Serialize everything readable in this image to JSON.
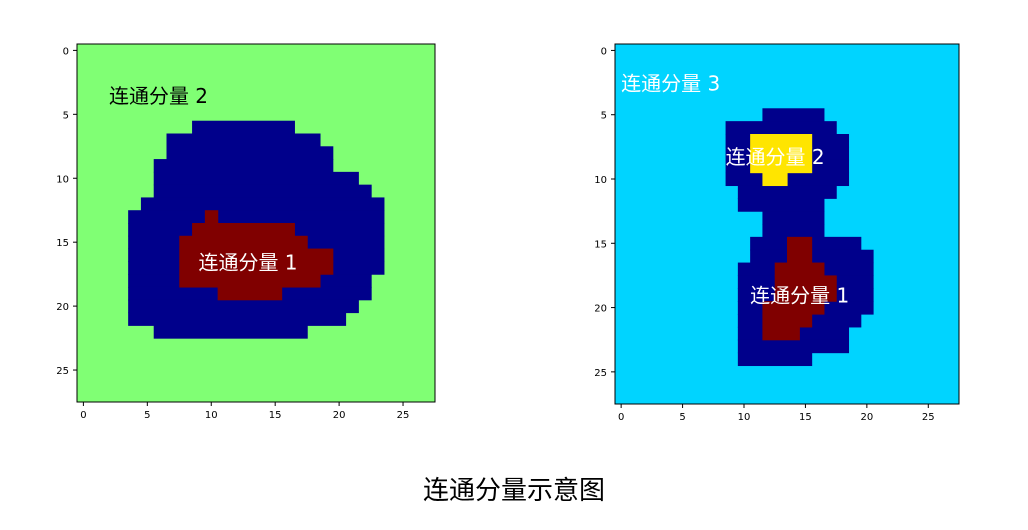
{
  "caption": "连通分量示意图",
  "colors": {
    "left_background": "#80ff74",
    "right_background": "#00d4ff",
    "navy": "#00008b",
    "dark_red": "#800000",
    "yellow": "#ffe500"
  },
  "chart_data": [
    {
      "type": "heatmap",
      "title": "",
      "xlabel": "",
      "ylabel": "",
      "xlim": [
        -0.5,
        27.5
      ],
      "ylim": [
        27.5,
        -0.5
      ],
      "x_ticks": [
        0,
        5,
        10,
        15,
        20,
        25
      ],
      "y_ticks": [
        0,
        5,
        10,
        15,
        20,
        25
      ],
      "background_color": "#80ff74",
      "regions": [
        {
          "name": "blue",
          "color": "#00008b",
          "rows": [
            {
              "y": 6,
              "x_start": 9,
              "x_end": 16
            },
            {
              "y": 7,
              "x_start": 7,
              "x_end": 18
            },
            {
              "y": 8,
              "x_start": 7,
              "x_end": 19
            },
            {
              "y": 9,
              "x_start": 6,
              "x_end": 19
            },
            {
              "y": 10,
              "x_start": 6,
              "x_end": 21
            },
            {
              "y": 11,
              "x_start": 6,
              "x_end": 22
            },
            {
              "y": 12,
              "x_start": 5,
              "x_end": 23
            },
            {
              "y": 13,
              "x_start": 4,
              "x_end": 23
            },
            {
              "y": 14,
              "x_start": 4,
              "x_end": 23
            },
            {
              "y": 15,
              "x_start": 4,
              "x_end": 23
            },
            {
              "y": 16,
              "x_start": 4,
              "x_end": 23
            },
            {
              "y": 17,
              "x_start": 4,
              "x_end": 23
            },
            {
              "y": 18,
              "x_start": 4,
              "x_end": 22
            },
            {
              "y": 19,
              "x_start": 4,
              "x_end": 22
            },
            {
              "y": 20,
              "x_start": 4,
              "x_end": 21
            },
            {
              "y": 21,
              "x_start": 4,
              "x_end": 20
            },
            {
              "y": 22,
              "x_start": 6,
              "x_end": 17
            }
          ]
        },
        {
          "name": "red",
          "color": "#800000",
          "rows": [
            {
              "y": 13,
              "x_start": 10,
              "x_end": 10
            },
            {
              "y": 14,
              "x_start": 9,
              "x_end": 16
            },
            {
              "y": 15,
              "x_start": 8,
              "x_end": 17
            },
            {
              "y": 16,
              "x_start": 8,
              "x_end": 19
            },
            {
              "y": 17,
              "x_start": 8,
              "x_end": 19
            },
            {
              "y": 18,
              "x_start": 8,
              "x_end": 18
            },
            {
              "y": 19,
              "x_start": 11,
              "x_end": 15
            }
          ]
        }
      ],
      "annotations": [
        {
          "text": "连通分量 2",
          "x": 2,
          "y": 3.5,
          "color": "#000000"
        },
        {
          "text": "连通分量 1",
          "x": 9,
          "y": 16.5,
          "color": "#ffffff"
        }
      ]
    },
    {
      "type": "heatmap",
      "title": "",
      "xlabel": "",
      "ylabel": "",
      "xlim": [
        -0.5,
        27.5
      ],
      "ylim": [
        27.5,
        -0.5
      ],
      "x_ticks": [
        0,
        5,
        10,
        15,
        20,
        25
      ],
      "y_ticks": [
        0,
        5,
        10,
        15,
        20,
        25
      ],
      "background_color": "#00d4ff",
      "regions": [
        {
          "name": "blue",
          "color": "#00008b",
          "rows": [
            {
              "y": 5,
              "x_start": 12,
              "x_end": 16
            },
            {
              "y": 6,
              "x_start": 9,
              "x_end": 17
            },
            {
              "y": 7,
              "x_start": 9,
              "x_end": 18
            },
            {
              "y": 8,
              "x_start": 9,
              "x_end": 18
            },
            {
              "y": 9,
              "x_start": 9,
              "x_end": 18
            },
            {
              "y": 10,
              "x_start": 9,
              "x_end": 18
            },
            {
              "y": 11,
              "x_start": 10,
              "x_end": 17
            },
            {
              "y": 12,
              "x_start": 10,
              "x_end": 16
            },
            {
              "y": 13,
              "x_start": 12,
              "x_end": 16
            },
            {
              "y": 14,
              "x_start": 12,
              "x_end": 16
            },
            {
              "y": 15,
              "x_start": 11,
              "x_end": 19
            },
            {
              "y": 16,
              "x_start": 11,
              "x_end": 20
            },
            {
              "y": 17,
              "x_start": 10,
              "x_end": 20
            },
            {
              "y": 18,
              "x_start": 10,
              "x_end": 20
            },
            {
              "y": 19,
              "x_start": 10,
              "x_end": 20
            },
            {
              "y": 20,
              "x_start": 10,
              "x_end": 20
            },
            {
              "y": 21,
              "x_start": 10,
              "x_end": 19
            },
            {
              "y": 22,
              "x_start": 10,
              "x_end": 18
            },
            {
              "y": 23,
              "x_start": 10,
              "x_end": 18
            },
            {
              "y": 24,
              "x_start": 10,
              "x_end": 15
            }
          ]
        },
        {
          "name": "red",
          "color": "#800000",
          "rows": [
            {
              "y": 15,
              "x_start": 14,
              "x_end": 15
            },
            {
              "y": 16,
              "x_start": 14,
              "x_end": 15
            },
            {
              "y": 17,
              "x_start": 13,
              "x_end": 16
            },
            {
              "y": 18,
              "x_start": 13,
              "x_end": 17
            },
            {
              "y": 19,
              "x_start": 13,
              "x_end": 17
            },
            {
              "y": 20,
              "x_start": 12,
              "x_end": 16
            },
            {
              "y": 21,
              "x_start": 12,
              "x_end": 15
            },
            {
              "y": 22,
              "x_start": 12,
              "x_end": 14
            }
          ]
        },
        {
          "name": "yellow",
          "color": "#ffe500",
          "rows": [
            {
              "y": 7,
              "x_start": 11,
              "x_end": 15
            },
            {
              "y": 8,
              "x_start": 11,
              "x_end": 15
            },
            {
              "y": 9,
              "x_start": 11,
              "x_end": 15
            },
            {
              "y": 10,
              "x_start": 12,
              "x_end": 13
            }
          ]
        }
      ],
      "annotations": [
        {
          "text": "连通分量 3",
          "x": 0,
          "y": 2.5,
          "color": "#ffffff"
        },
        {
          "text": "连通分量 2",
          "x": 8.5,
          "y": 8.2,
          "color": "#ffffff"
        },
        {
          "text": "连通分量 1",
          "x": 10.5,
          "y": 19,
          "color": "#ffffff"
        }
      ]
    }
  ]
}
